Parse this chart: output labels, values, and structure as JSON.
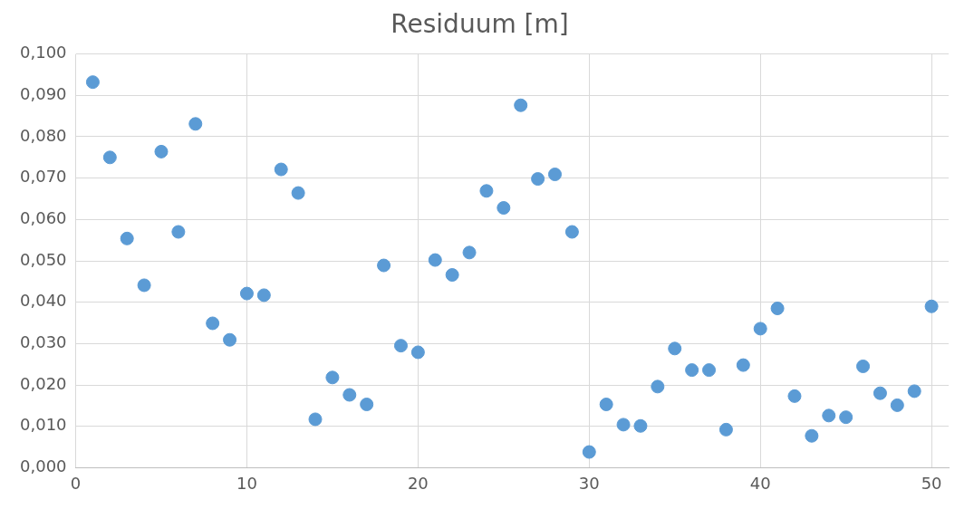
{
  "chart_data": {
    "type": "scatter",
    "title": "Residuum [m]",
    "x": [
      1,
      2,
      3,
      4,
      5,
      6,
      7,
      8,
      9,
      10,
      11,
      12,
      13,
      14,
      15,
      16,
      17,
      18,
      19,
      20,
      21,
      22,
      23,
      24,
      25,
      26,
      27,
      28,
      29,
      30,
      31,
      32,
      33,
      34,
      35,
      36,
      37,
      38,
      39,
      40,
      41,
      42,
      43,
      44,
      45,
      46,
      47,
      48,
      49,
      50
    ],
    "series": [
      {
        "color": "#5b9bd5",
        "values": [
          0.0932,
          0.075,
          0.0554,
          0.0441,
          0.0764,
          0.057,
          0.0831,
          0.0349,
          0.0309,
          0.0421,
          0.0417,
          0.0721,
          0.0664,
          0.0117,
          0.0218,
          0.0176,
          0.0153,
          0.0489,
          0.0295,
          0.0279,
          0.0502,
          0.0466,
          0.052,
          0.0669,
          0.0628,
          0.0876,
          0.0698,
          0.0709,
          0.057,
          0.0038,
          0.0153,
          0.0104,
          0.0101,
          0.0196,
          0.0288,
          0.0236,
          0.0236,
          0.0092,
          0.0248,
          0.0336,
          0.0385,
          0.0173,
          0.0077,
          0.0126,
          0.0122,
          0.0245,
          0.018,
          0.0151,
          0.0185,
          0.039
        ]
      }
    ],
    "xlim": [
      0,
      51
    ],
    "xticks": [
      0,
      10,
      20,
      30,
      40,
      50
    ],
    "ylim": [
      0,
      0.1
    ],
    "yticks": [
      {
        "value": 0,
        "label": "0,000"
      },
      {
        "value": 0.01,
        "label": "0,010"
      },
      {
        "value": 0.02,
        "label": "0,020"
      },
      {
        "value": 0.03,
        "label": "0,030"
      },
      {
        "value": 0.04,
        "label": "0,040"
      },
      {
        "value": 0.05,
        "label": "0,050"
      },
      {
        "value": 0.06,
        "label": "0,060"
      },
      {
        "value": 0.07,
        "label": "0,070"
      },
      {
        "value": 0.08,
        "label": "0,080"
      },
      {
        "value": 0.09,
        "label": "0,090"
      },
      {
        "value": 0.1,
        "label": "0,100"
      }
    ],
    "grid": true,
    "marker": "circle",
    "legend": false
  }
}
